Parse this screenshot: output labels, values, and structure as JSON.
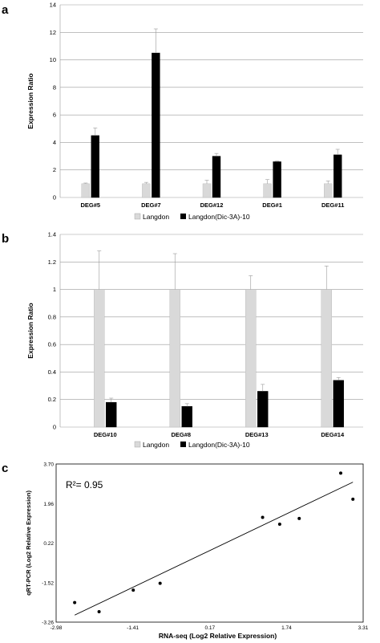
{
  "chart_data": [
    {
      "panel": "a",
      "type": "bar",
      "categories": [
        "DEG#5",
        "DEG#7",
        "DEG#12",
        "DEG#1",
        "DEG#11"
      ],
      "series": [
        {
          "name": "Langdon",
          "values": [
            1.0,
            1.0,
            1.0,
            1.0,
            1.0
          ],
          "errors": [
            0.05,
            0.1,
            0.25,
            0.3,
            0.2
          ],
          "color": "#d9d9d9"
        },
        {
          "name": "Langdon(Dic-3A)-10",
          "values": [
            4.5,
            10.5,
            3.0,
            2.6,
            3.1
          ],
          "errors": [
            0.55,
            1.75,
            0.2,
            0.05,
            0.4
          ],
          "color": "#000000"
        }
      ],
      "ylabel": "Expression Ratio",
      "ylim": [
        0,
        14
      ],
      "yticks": [
        0,
        2,
        4,
        6,
        8,
        10,
        12,
        14
      ],
      "grid": true,
      "legend": "bottom"
    },
    {
      "panel": "b",
      "type": "bar",
      "categories": [
        "DEG#10",
        "DEG#8",
        "DEG#13",
        "DEG#14"
      ],
      "series": [
        {
          "name": "Langdon",
          "values": [
            1.0,
            1.0,
            1.0,
            1.0
          ],
          "errors": [
            0.28,
            0.26,
            0.1,
            0.17
          ],
          "color": "#d9d9d9"
        },
        {
          "name": "Langdon(Dic-3A)-10",
          "values": [
            0.18,
            0.15,
            0.26,
            0.34
          ],
          "errors": [
            0.03,
            0.02,
            0.05,
            0.02
          ],
          "color": "#000000"
        }
      ],
      "ylabel": "Expression Ratio",
      "ylim": [
        0,
        1.4
      ],
      "yticks": [
        0,
        0.2,
        0.4,
        0.6,
        0.8,
        1,
        1.2,
        1.4
      ],
      "grid": true,
      "legend": "bottom"
    },
    {
      "panel": "c",
      "type": "scatter",
      "x": [
        -2.6,
        -2.1,
        -1.4,
        -0.85,
        1.25,
        1.6,
        2.0,
        2.85,
        3.1
      ],
      "y": [
        -2.4,
        -2.8,
        -1.85,
        -1.55,
        1.35,
        1.05,
        1.3,
        3.3,
        2.15
      ],
      "xlabel": "RNA-seq (Log2 Relative Expression)",
      "ylabel": "qRT-PCR (Log2 Relative Expression)",
      "xlim": [
        -2.98,
        3.31
      ],
      "ylim": [
        -3.26,
        3.7
      ],
      "xticks": [
        "-2.98",
        "-1.41",
        "0.17",
        "1.74",
        "3.31"
      ],
      "yticks": [
        "3.70",
        "1.96",
        "0.22",
        "-1.52",
        "-3.26"
      ],
      "trendline": {
        "x": [
          -2.6,
          3.1
        ],
        "y": [
          -2.95,
          2.9
        ]
      },
      "annotation": "R²= 0.95"
    }
  ]
}
